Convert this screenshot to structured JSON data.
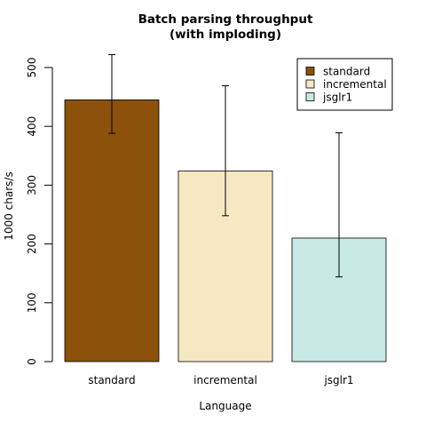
{
  "chart_data": {
    "type": "bar",
    "title_line1": "Batch parsing throughput",
    "title_line2": "(with imploding)",
    "xlabel": "Language",
    "ylabel": "1000 chars/s",
    "categories": [
      "standard",
      "incremental",
      "jsglr1"
    ],
    "values": [
      445,
      324,
      210
    ],
    "error_low": [
      388,
      248,
      144
    ],
    "error_high": [
      522,
      469,
      389
    ],
    "colors": [
      "#8C510A",
      "#F6E8C3",
      "#C7EAE5"
    ],
    "ylim": [
      0,
      500
    ],
    "yticks": [
      0,
      100,
      200,
      300,
      400,
      500
    ],
    "legend": {
      "position": "top-right",
      "entries": [
        "standard",
        "incremental",
        "jsglr1"
      ]
    },
    "grid": false
  }
}
